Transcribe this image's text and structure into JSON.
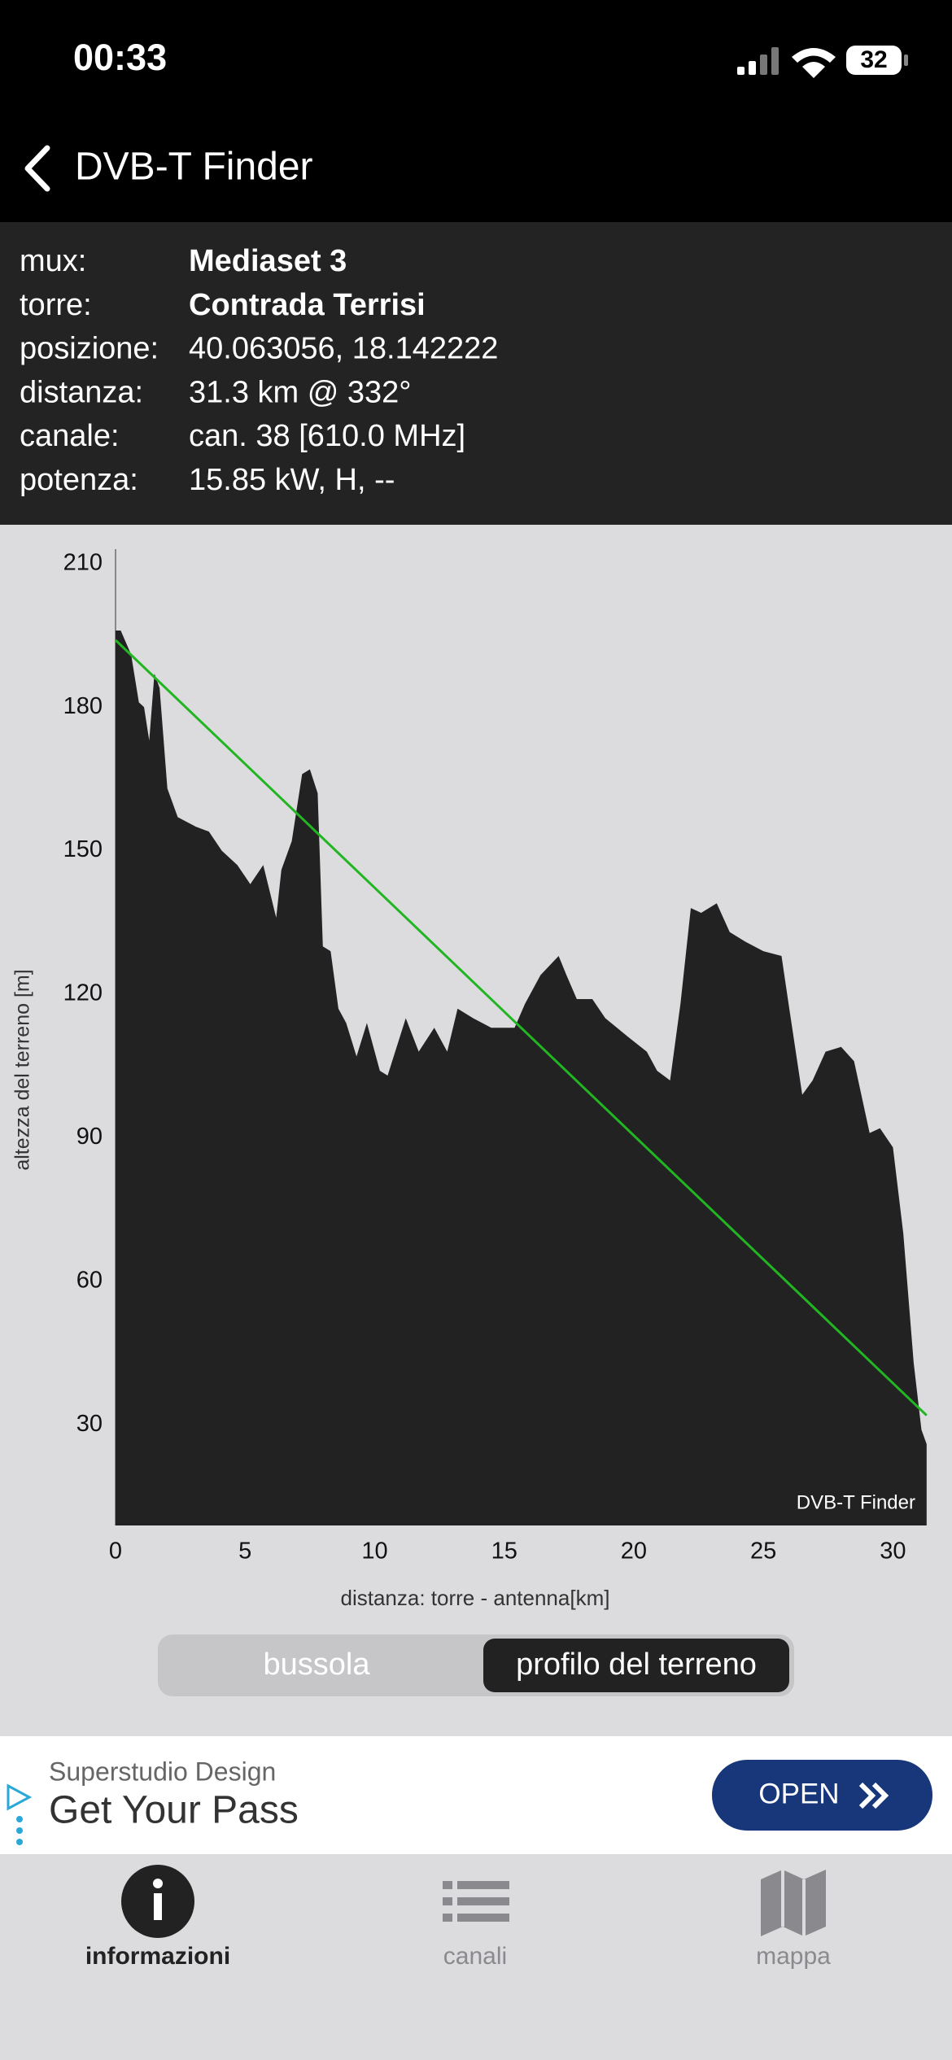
{
  "status_bar": {
    "time": "00:33",
    "battery": "32"
  },
  "nav": {
    "title": "DVB-T Finder"
  },
  "info": {
    "rows": [
      {
        "label": "mux:",
        "value": "Mediaset 3"
      },
      {
        "label": "torre:",
        "value": "Contrada Terrisi"
      },
      {
        "label": "posizione:",
        "value": "40.063056, 18.142222"
      },
      {
        "label": "distanza:",
        "value": "31.3 km @ 332°"
      },
      {
        "label": "canale:",
        "value": "can. 38 [610.0 MHz]"
      },
      {
        "label": "potenza:",
        "value": "15.85 kW, H, --"
      }
    ]
  },
  "chart_data": {
    "type": "area",
    "xlabel": "distanza: torre - antenna[km]",
    "ylabel": "altezza del terreno [m]",
    "watermark": "DVB-T Finder",
    "xlim": [
      0,
      31.4
    ],
    "ylim": [
      9,
      213
    ],
    "xticks": [
      0,
      5,
      10,
      15,
      20,
      25,
      30
    ],
    "yticks": [
      30,
      60,
      90,
      120,
      150,
      180,
      210
    ],
    "series": [
      {
        "type": "area",
        "color": "#222222",
        "x": [
          0,
          0.2,
          0.6,
          0.9,
          1.1,
          1.3,
          1.5,
          1.7,
          2.0,
          2.4,
          3.1,
          3.6,
          4.1,
          4.7,
          5.2,
          5.7,
          6.2,
          6.4,
          6.8,
          7.2,
          7.5,
          7.8,
          8.0,
          8.3,
          8.6,
          8.9,
          9.3,
          9.7,
          10.2,
          10.5,
          11.2,
          11.7,
          12.3,
          12.8,
          13.2,
          13.8,
          14.5,
          15.4,
          15.8,
          16.4,
          17.1,
          17.4,
          17.8,
          18.4,
          18.9,
          19.8,
          20.5,
          20.9,
          21.4,
          21.8,
          22.2,
          22.6,
          23.2,
          23.7,
          24.3,
          25.0,
          25.7,
          26.0,
          26.5,
          26.9,
          27.4,
          28.0,
          28.5,
          29.1,
          29.5,
          30.0,
          30.4,
          30.8,
          31.1,
          31.3
        ],
        "values": [
          196,
          196,
          191,
          181,
          180,
          173,
          187,
          184,
          163,
          157,
          155,
          154,
          150,
          147,
          143,
          147,
          136,
          146,
          152,
          166,
          167,
          162,
          130,
          129,
          117,
          114,
          107,
          114,
          104,
          103,
          115,
          108,
          113,
          108,
          117,
          115,
          113,
          113,
          118,
          124,
          128,
          124,
          119,
          119,
          115,
          111,
          108,
          104,
          102,
          118,
          138,
          137,
          139,
          133,
          131,
          129,
          128,
          117,
          99,
          102,
          108,
          109,
          106,
          91,
          92,
          88,
          70,
          43,
          29,
          26
        ]
      },
      {
        "type": "line",
        "color": "#22b522",
        "x": [
          0,
          31.3
        ],
        "values": [
          194,
          32
        ]
      }
    ]
  },
  "segmented": {
    "options": [
      "bussola",
      "profilo del terreno"
    ],
    "selected": 1
  },
  "ad": {
    "advertiser": "Superstudio Design",
    "headline": "Get Your Pass",
    "button": "OPEN"
  },
  "tabs": {
    "items": [
      "informazioni",
      "canali",
      "mappa"
    ],
    "selected": 0
  }
}
